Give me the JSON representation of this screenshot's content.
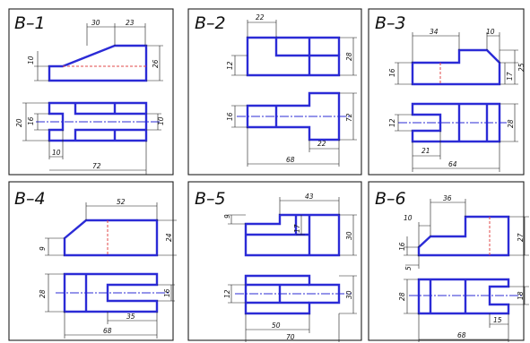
{
  "panels": [
    {
      "title": "B–1",
      "top": {
        "length": "30",
        "chamfer": "23",
        "step": "10",
        "height": "26"
      },
      "plan": {
        "width": "20",
        "slot_width": "16",
        "hole": "10",
        "slot_depth": "10",
        "length": "72"
      }
    },
    {
      "title": "B–2",
      "top": {
        "step_len": "22",
        "step": "12",
        "height": "28"
      },
      "plan": {
        "slot": "16",
        "width": "72",
        "tab": "22",
        "length": "68"
      }
    },
    {
      "title": "B–3",
      "top": {
        "length": "34",
        "chamfer": "10",
        "height": "16",
        "notch": "17",
        "total": "25"
      },
      "plan": {
        "slot": "12",
        "slot_depth": "21",
        "width": "28",
        "length": "64"
      }
    },
    {
      "title": "B–4",
      "top": {
        "length": "52",
        "step": "9",
        "height": "24"
      },
      "plan": {
        "width": "28",
        "slot": "16",
        "slot_depth": "35",
        "length": "68"
      }
    },
    {
      "title": "B–5",
      "top": {
        "length": "43",
        "step": "9",
        "notch": "17",
        "height": "30"
      },
      "plan": {
        "slot": "12",
        "width": "30",
        "slot_depth": "50",
        "length": "70"
      }
    },
    {
      "title": "B–6",
      "top": {
        "length": "36",
        "chamfer": "10",
        "height": "16",
        "step": "5",
        "total": "27"
      },
      "plan": {
        "width": "28",
        "slot": "18",
        "slot_depth": "15",
        "length": "68"
      }
    }
  ],
  "colors": {
    "outline": "#2b2bd6",
    "hidden": "#e04a4a",
    "frame": "#1f1f1f",
    "text": "#111111"
  }
}
